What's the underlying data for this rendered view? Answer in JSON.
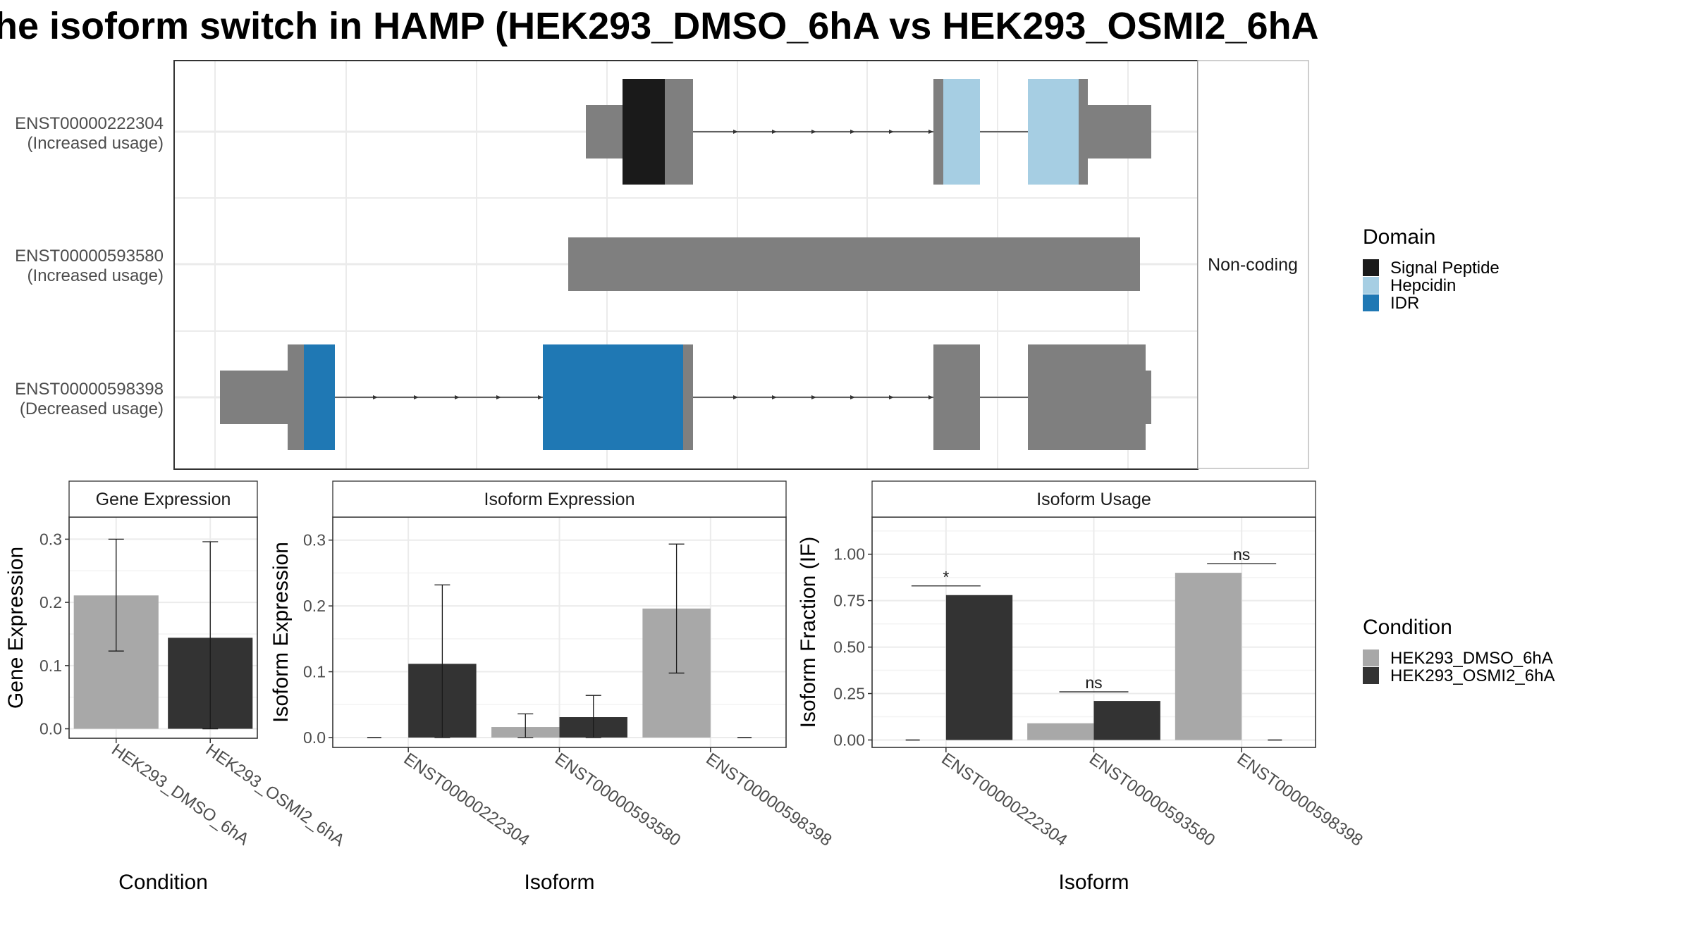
{
  "title": "he isoform switch in HAMP (HEK293_DMSO_6hA vs HEK293_OSMI2_6hA",
  "colors": {
    "signal_peptide": "#1a1a1a",
    "hepcidin": "#a6cee3",
    "idr": "#1f78b4",
    "utr": "#7f7f7f",
    "dmso": "#a8a8a8",
    "osmi2": "#333333",
    "grid": "#ebebeb",
    "panel_border": "#333333"
  },
  "structure": {
    "transcripts": [
      {
        "id": "ENST00000222304",
        "status": "(Increased usage)"
      },
      {
        "id": "ENST00000593580",
        "status": "(Increased usage)"
      },
      {
        "id": "ENST00000598398",
        "status": "(Decreased usage)"
      }
    ],
    "strip_label": "Non-coding"
  },
  "domain_legend": {
    "title": "Domain",
    "items": [
      {
        "label": "Signal Peptide",
        "color": "#1a1a1a"
      },
      {
        "label": "Hepcidin",
        "color": "#a6cee3"
      },
      {
        "label": "IDR",
        "color": "#1f78b4"
      }
    ]
  },
  "condition_legend": {
    "title": "Condition",
    "items": [
      {
        "label": "HEK293_DMSO_6hA",
        "color": "#a8a8a8"
      },
      {
        "label": "HEK293_OSMI2_6hA",
        "color": "#333333"
      }
    ]
  },
  "chart_data": [
    {
      "type": "bar",
      "title": "Gene Expression",
      "xlabel": "Condition",
      "ylabel": "Gene Expression",
      "categories": [
        "HEK293_DMSO_6hA",
        "HEK293_OSMI2_6hA"
      ],
      "values": [
        0.211,
        0.144
      ],
      "error_low": [
        0.123,
        0.0
      ],
      "error_high": [
        0.3,
        0.296
      ],
      "ylim": [
        -0.015,
        0.335
      ],
      "yticks": [
        0.0,
        0.1,
        0.2,
        0.3
      ],
      "ytick_labels": [
        "0.0",
        "0.1",
        "0.2",
        "0.3"
      ]
    },
    {
      "type": "bar",
      "title": "Isoform Expression",
      "xlabel": "Isoform",
      "ylabel": "Isoform Expression",
      "categories": [
        "ENST00000222304",
        "ENST00000593580",
        "ENST00000598398"
      ],
      "series": [
        {
          "name": "HEK293_DMSO_6hA",
          "values": [
            0.0,
            0.016,
            0.196
          ],
          "error_low": [
            0.0,
            0.0,
            0.098
          ],
          "error_high": [
            0.0,
            0.036,
            0.294
          ]
        },
        {
          "name": "HEK293_OSMI2_6hA",
          "values": [
            0.112,
            0.031,
            0.0
          ],
          "error_low": [
            0.0,
            0.0,
            0.0
          ],
          "error_high": [
            0.232,
            0.064,
            0.0
          ]
        }
      ],
      "ylim": [
        -0.015,
        0.335
      ],
      "yticks": [
        0.0,
        0.1,
        0.2,
        0.3
      ],
      "ytick_labels": [
        "0.0",
        "0.1",
        "0.2",
        "0.3"
      ]
    },
    {
      "type": "bar",
      "title": "Isoform Usage",
      "xlabel": "Isoform",
      "ylabel": "Isoform Fraction (IF)",
      "categories": [
        "ENST00000222304",
        "ENST00000593580",
        "ENST00000598398"
      ],
      "series": [
        {
          "name": "HEK293_DMSO_6hA",
          "values": [
            0.0,
            0.09,
            0.9
          ]
        },
        {
          "name": "HEK293_OSMI2_6hA",
          "values": [
            0.78,
            0.21,
            0.0
          ]
        }
      ],
      "significance": [
        "*",
        "ns",
        "ns"
      ],
      "ylim": [
        -0.04,
        1.2
      ],
      "yticks": [
        0.0,
        0.25,
        0.5,
        0.75,
        1.0
      ],
      "ytick_labels": [
        "0.00",
        "0.25",
        "0.50",
        "0.75",
        "1.00"
      ]
    }
  ]
}
